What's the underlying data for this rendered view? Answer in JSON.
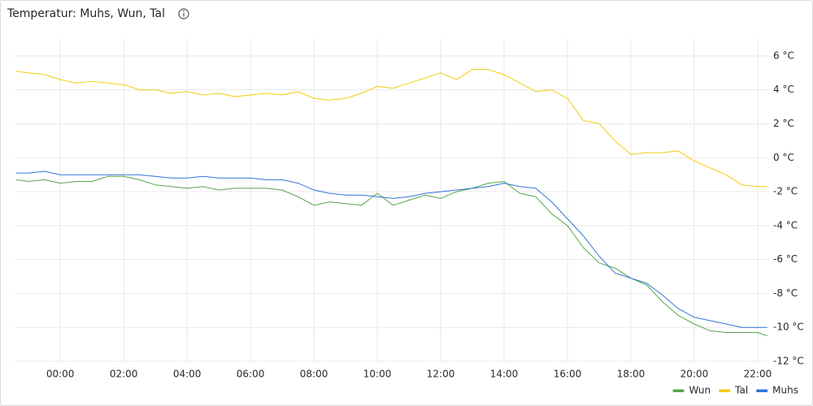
{
  "chart_data": {
    "type": "line",
    "title": "Temperatur: Muhs, Wun, Tal",
    "x": [
      -1.4,
      -1,
      -0.5,
      0,
      0.5,
      1,
      1.5,
      2,
      2.5,
      3,
      3.5,
      4,
      4.5,
      5,
      5.5,
      6,
      6.5,
      7,
      7.5,
      8,
      8.5,
      9,
      9.5,
      10,
      10.5,
      11,
      11.5,
      12,
      12.5,
      13,
      13.5,
      14,
      14.5,
      15,
      15.5,
      16,
      16.5,
      17,
      17.5,
      18,
      18.5,
      19,
      19.5,
      20,
      20.5,
      21,
      21.5,
      22,
      22.3
    ],
    "series": [
      {
        "name": "Wun",
        "color": "#56a64b",
        "values": [
          -1.3,
          -1.4,
          -1.3,
          -1.5,
          -1.4,
          -1.4,
          -1.1,
          -1.1,
          -1.3,
          -1.6,
          -1.7,
          -1.8,
          -1.7,
          -1.9,
          -1.8,
          -1.8,
          -1.8,
          -1.9,
          -2.3,
          -2.8,
          -2.6,
          -2.7,
          -2.8,
          -2.1,
          -2.8,
          -2.5,
          -2.2,
          -2.4,
          -2.0,
          -1.8,
          -1.5,
          -1.4,
          -2.1,
          -2.3,
          -3.3,
          -4.0,
          -5.3,
          -6.2,
          -6.5,
          -7.1,
          -7.5,
          -8.5,
          -9.3,
          -9.8,
          -10.2,
          -10.3,
          -10.3,
          -10.3,
          -10.5
        ]
      },
      {
        "name": "Tal",
        "color": "#f2cc0c",
        "values": [
          5.1,
          5.0,
          4.9,
          4.6,
          4.4,
          4.5,
          4.4,
          4.3,
          4.0,
          4.0,
          3.8,
          3.9,
          3.7,
          3.8,
          3.6,
          3.7,
          3.8,
          3.7,
          3.9,
          3.5,
          3.4,
          3.5,
          3.8,
          4.2,
          4.1,
          4.4,
          4.7,
          5.0,
          4.6,
          5.2,
          5.2,
          4.9,
          4.4,
          3.9,
          4.0,
          3.5,
          2.2,
          2.0,
          1.0,
          0.2,
          0.3,
          0.3,
          0.4,
          -0.2,
          -0.6,
          -1.0,
          -1.6,
          -1.7,
          -1.7
        ]
      },
      {
        "name": "Muhs",
        "color": "#3274d9",
        "values": [
          -0.9,
          -0.9,
          -0.8,
          -1.0,
          -1.0,
          -1.0,
          -1.0,
          -1.0,
          -1.0,
          -1.1,
          -1.2,
          -1.2,
          -1.1,
          -1.2,
          -1.2,
          -1.2,
          -1.3,
          -1.3,
          -1.5,
          -1.9,
          -2.1,
          -2.2,
          -2.2,
          -2.3,
          -2.4,
          -2.3,
          -2.1,
          -2.0,
          -1.9,
          -1.8,
          -1.7,
          -1.5,
          -1.7,
          -1.8,
          -2.6,
          -3.6,
          -4.6,
          -5.8,
          -6.8,
          -7.1,
          -7.4,
          -8.1,
          -8.9,
          -9.4,
          -9.6,
          -9.8,
          -10.0,
          -10.0,
          -10.0
        ]
      }
    ],
    "xlim": [
      -1.44,
      22.36
    ],
    "xticks": [
      {
        "value": 0,
        "label": "00:00"
      },
      {
        "value": 2,
        "label": "02:00"
      },
      {
        "value": 4,
        "label": "04:00"
      },
      {
        "value": 6,
        "label": "06:00"
      },
      {
        "value": 8,
        "label": "08:00"
      },
      {
        "value": 10,
        "label": "10:00"
      },
      {
        "value": 12,
        "label": "12:00"
      },
      {
        "value": 14,
        "label": "14:00"
      },
      {
        "value": 16,
        "label": "16:00"
      },
      {
        "value": 18,
        "label": "18:00"
      },
      {
        "value": 20,
        "label": "20:00"
      },
      {
        "value": 22,
        "label": "22:00"
      }
    ],
    "ylim": [
      -12,
      7
    ],
    "yticks": [
      {
        "value": 6,
        "label": "6 °C"
      },
      {
        "value": 4,
        "label": "4 °C"
      },
      {
        "value": 2,
        "label": "2 °C"
      },
      {
        "value": 0,
        "label": "0 °C"
      },
      {
        "value": -2,
        "label": "-2 °C"
      },
      {
        "value": -4,
        "label": "-4 °C"
      },
      {
        "value": -6,
        "label": "-6 °C"
      },
      {
        "value": -8,
        "label": "-8 °C"
      },
      {
        "value": -10,
        "label": "-10 °C"
      },
      {
        "value": -12,
        "label": "-12 °C"
      }
    ],
    "grid": true
  }
}
